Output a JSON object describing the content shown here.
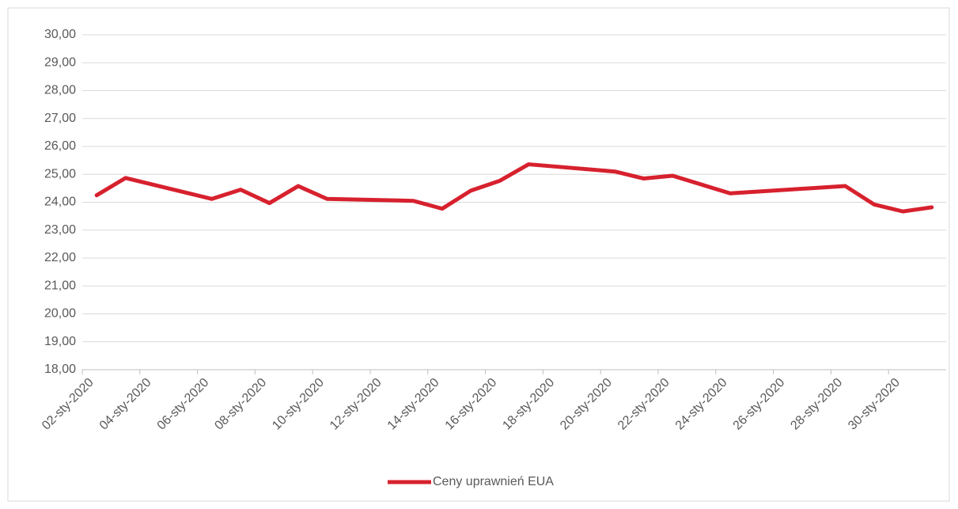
{
  "chart_data": {
    "type": "line",
    "x": [
      "02-sty-2020",
      "03-sty-2020",
      "06-sty-2020",
      "07-sty-2020",
      "08-sty-2020",
      "09-sty-2020",
      "10-sty-2020",
      "13-sty-2020",
      "14-sty-2020",
      "15-sty-2020",
      "16-sty-2020",
      "17-sty-2020",
      "20-sty-2020",
      "21-sty-2020",
      "22-sty-2020",
      "24-sty-2020",
      "28-sty-2020",
      "29-sty-2020",
      "30-sty-2020",
      "31-sty-2020"
    ],
    "series": [
      {
        "name": "Ceny uprawnień EUA",
        "color": "#d7212e",
        "values": [
          24.25,
          24.87,
          24.12,
          24.45,
          23.97,
          24.58,
          24.12,
          24.05,
          23.77,
          24.42,
          24.77,
          25.36,
          25.1,
          24.85,
          24.95,
          24.32,
          24.58,
          23.92,
          23.67,
          23.82
        ]
      }
    ],
    "xlim": [
      "02-sty-2020",
      "31-sty-2020"
    ],
    "xticks": [
      "02-sty-2020",
      "04-sty-2020",
      "06-sty-2020",
      "08-sty-2020",
      "10-sty-2020",
      "12-sty-2020",
      "14-sty-2020",
      "16-sty-2020",
      "18-sty-2020",
      "20-sty-2020",
      "22-sty-2020",
      "24-sty-2020",
      "26-sty-2020",
      "28-sty-2020",
      "30-sty-2020"
    ],
    "ylim": [
      18,
      30
    ],
    "yticks": [
      {
        "value": 18,
        "label": "18,00"
      },
      {
        "value": 19,
        "label": "19,00"
      },
      {
        "value": 20,
        "label": "20,00"
      },
      {
        "value": 21,
        "label": "21,00"
      },
      {
        "value": 22,
        "label": "22,00"
      },
      {
        "value": 23,
        "label": "23,00"
      },
      {
        "value": 24,
        "label": "24,00"
      },
      {
        "value": 25,
        "label": "25,00"
      },
      {
        "value": 26,
        "label": "26,00"
      },
      {
        "value": 27,
        "label": "27,00"
      },
      {
        "value": 28,
        "label": "28,00"
      },
      {
        "value": 29,
        "label": "29,00"
      },
      {
        "value": 30,
        "label": "30,00"
      }
    ],
    "grid": true,
    "legend": "bottom"
  }
}
